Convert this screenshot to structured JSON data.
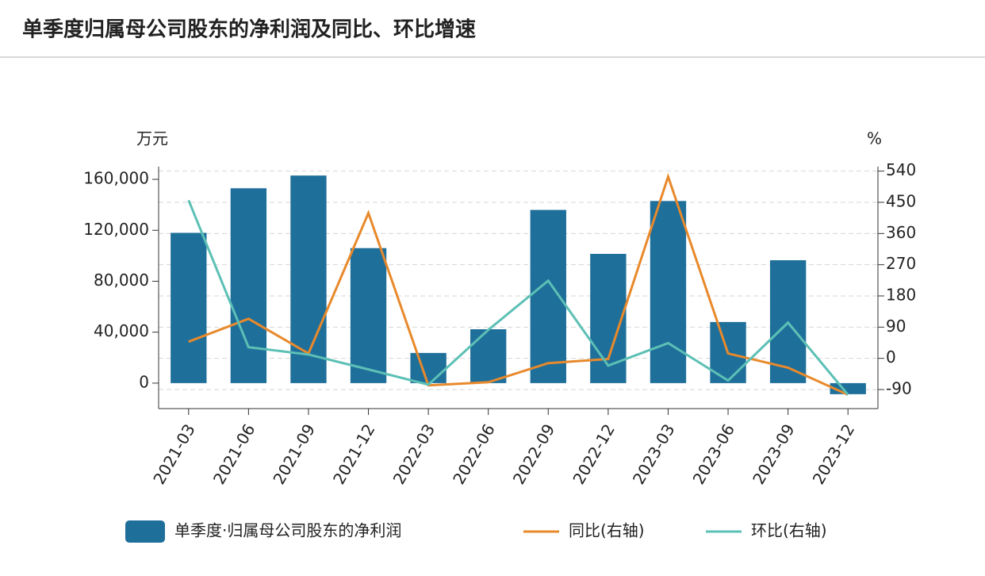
{
  "chart_data": {
    "type": "bar-line",
    "title": "单季度归属母公司股东的净利润及同比、环比增速",
    "y_label": "万元",
    "y2_label": "%",
    "categories": [
      "2021-03",
      "2021-06",
      "2021-09",
      "2021-12",
      "2022-03",
      "2022-06",
      "2022-09",
      "2022-12",
      "2023-03",
      "2023-06",
      "2023-09",
      "2023-12"
    ],
    "series": [
      {
        "name": "单季度·归属母公司股东的净利润",
        "type": "bar",
        "axis": "y",
        "color": "#1f6f9b",
        "values": [
          118000,
          153000,
          163000,
          106000,
          23700,
          42300,
          136000,
          101500,
          143000,
          48000,
          96500,
          -8700
        ]
      },
      {
        "name": "同比(右轴)",
        "type": "line",
        "axis": "y2",
        "color": "#e8892b",
        "values": [
          48,
          114,
          14,
          419,
          -78,
          -69,
          -14,
          -2,
          524,
          14,
          -27,
          -105
        ]
      },
      {
        "name": "环比(右轴)",
        "type": "line",
        "axis": "y2",
        "color": "#5cc0b5",
        "values": [
          456,
          32,
          11,
          -32,
          -76,
          82,
          224,
          -21,
          44,
          -64,
          103,
          -105
        ]
      }
    ],
    "ylim": [
      -20000,
      170000
    ],
    "yticks": [
      {
        "value": 0,
        "label": "0"
      },
      {
        "value": 40000,
        "label": "40,000"
      },
      {
        "value": 80000,
        "label": "80,000"
      },
      {
        "value": 120000,
        "label": "120,000"
      },
      {
        "value": 160000,
        "label": "160,000"
      }
    ],
    "y2lim": [
      -145,
      553
    ],
    "y2ticks": [
      -90,
      0,
      90,
      180,
      270,
      360,
      450,
      540
    ],
    "grid": true
  }
}
